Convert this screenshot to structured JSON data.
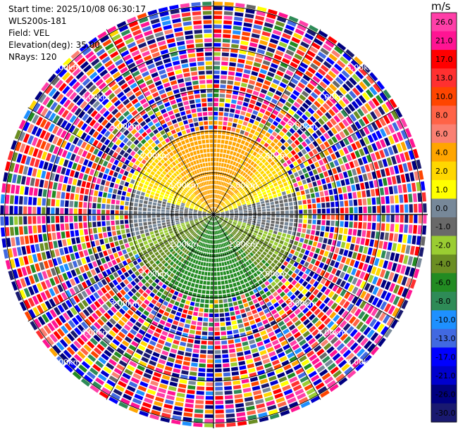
{
  "meta": {
    "start_time": "Start time: 2025/10/08 06:30:17",
    "instrument": "WLS200s-181",
    "field": "Field: VEL",
    "elevation": "Elevation(deg): 35.00",
    "nrays": "NRays: 120"
  },
  "colorbar": {
    "unit": "m/s",
    "ticks": [
      "26.0",
      "21.0",
      "17.0",
      "13.0",
      "10.0",
      "8.0",
      "6.0",
      "4.0",
      "2.0",
      "1.0",
      "0.0",
      "-1.0",
      "-2.0",
      "-4.0",
      "-6.0",
      "-8.0",
      "-10.0",
      "-13.0",
      "-17.0",
      "-21.0",
      "-26.0",
      "-30.0"
    ],
    "bands": [
      {
        "from": 26,
        "to": 30,
        "color": "#ff3fa8"
      },
      {
        "from": 21,
        "to": 26,
        "color": "#ff1493"
      },
      {
        "from": 17,
        "to": 21,
        "color": "#ff0000"
      },
      {
        "from": 13,
        "to": 17,
        "color": "#ff3030"
      },
      {
        "from": 10,
        "to": 13,
        "color": "#ff4500"
      },
      {
        "from": 8,
        "to": 10,
        "color": "#ff6347"
      },
      {
        "from": 6,
        "to": 8,
        "color": "#fa8072"
      },
      {
        "from": 4,
        "to": 6,
        "color": "#ffa500"
      },
      {
        "from": 2,
        "to": 4,
        "color": "#ffd700"
      },
      {
        "from": 1,
        "to": 2,
        "color": "#ffff00"
      },
      {
        "from": 0,
        "to": 1,
        "color": "#778899"
      },
      {
        "from": -1,
        "to": 0,
        "color": "#696969"
      },
      {
        "from": -2,
        "to": -1,
        "color": "#9acd32"
      },
      {
        "from": -4,
        "to": -2,
        "color": "#6b8e23"
      },
      {
        "from": -6,
        "to": -4,
        "color": "#228b22"
      },
      {
        "from": -8,
        "to": -6,
        "color": "#2e8b57"
      },
      {
        "from": -10,
        "to": -8,
        "color": "#1e90ff"
      },
      {
        "from": -13,
        "to": -10,
        "color": "#4169e1"
      },
      {
        "from": -17,
        "to": -13,
        "color": "#0000ff"
      },
      {
        "from": -21,
        "to": -17,
        "color": "#0000cd"
      },
      {
        "from": -26,
        "to": -21,
        "color": "#000080"
      },
      {
        "from": -30,
        "to": -26,
        "color": "#191970"
      }
    ]
  },
  "chart_data": {
    "type": "heatmap",
    "projection": "polar PPI",
    "field": "VEL",
    "elevation_deg": 35.0,
    "n_rays": 120,
    "range_rings_km": [
      1,
      2,
      3,
      4,
      5
    ],
    "range_ring_labels": [
      "1.00km",
      "2.00km",
      "3.00km",
      "4.00km",
      "5.00km"
    ],
    "value_range": [
      -30,
      30
    ],
    "near_field_pattern": {
      "north": "positive (2 to 6 m/s)",
      "center": "near zero (-1 to 1 m/s)",
      "south": "negative (-1 to -6 m/s)"
    },
    "far_field": "noise across full range"
  }
}
